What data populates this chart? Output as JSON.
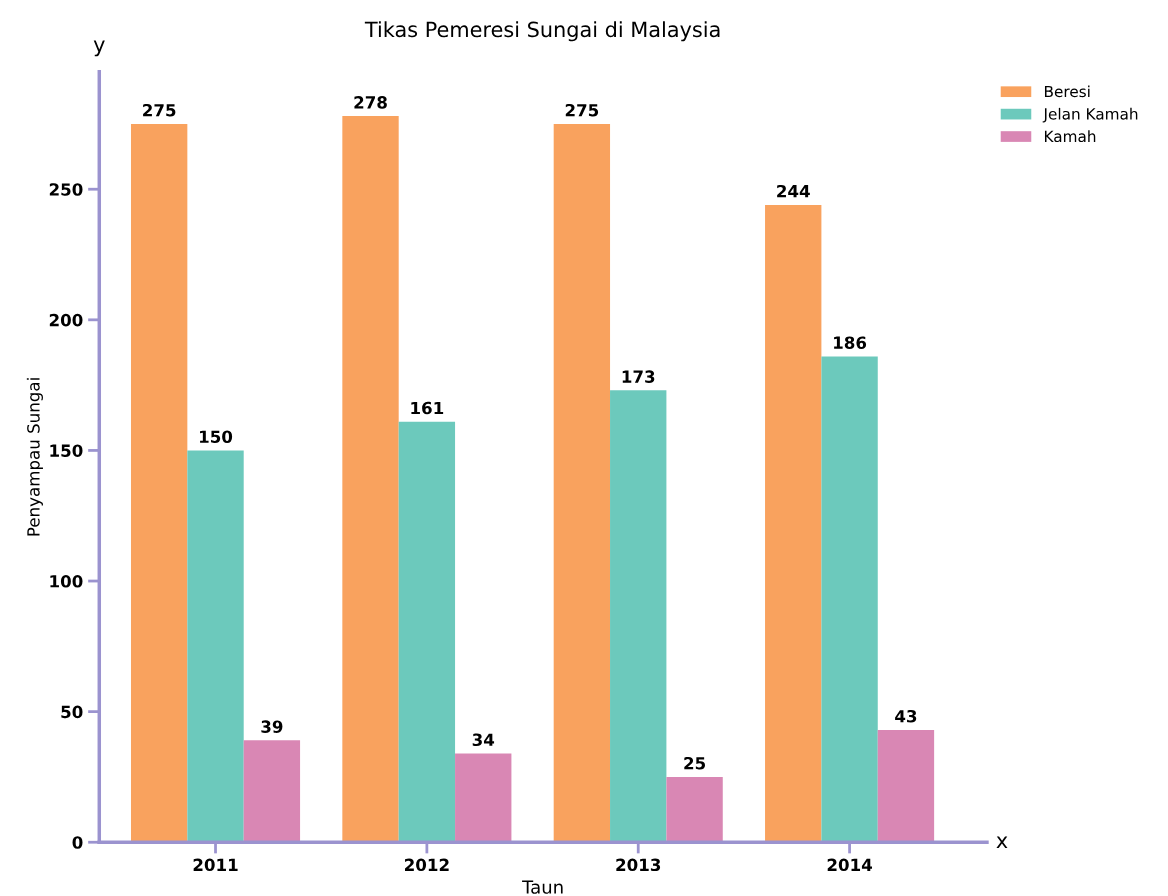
{
  "chart_data": {
    "type": "bar",
    "title": "Tikas Pemeresi Sungai di Malaysia",
    "xlabel": "Taun",
    "ylabel": "Penyampau Sungai",
    "annotations": [
      "y",
      "x"
    ],
    "categories": [
      "2011",
      "2012",
      "2013",
      "2014"
    ],
    "series": [
      {
        "name": "Beresi",
        "color": "#f9a25e",
        "values": [
          275,
          278,
          275,
          244
        ]
      },
      {
        "name": "Jelan Kamah",
        "color": "#6cc9bc",
        "values": [
          150,
          161,
          173,
          186
        ]
      },
      {
        "name": "Kamah",
        "color": "#d987b4",
        "values": [
          39,
          34,
          25,
          43
        ]
      }
    ],
    "ylim": [
      0,
      295
    ],
    "yticks": [
      0,
      50,
      100,
      150,
      200,
      250
    ],
    "data_labels": true,
    "grid": false,
    "legend": "top right"
  }
}
